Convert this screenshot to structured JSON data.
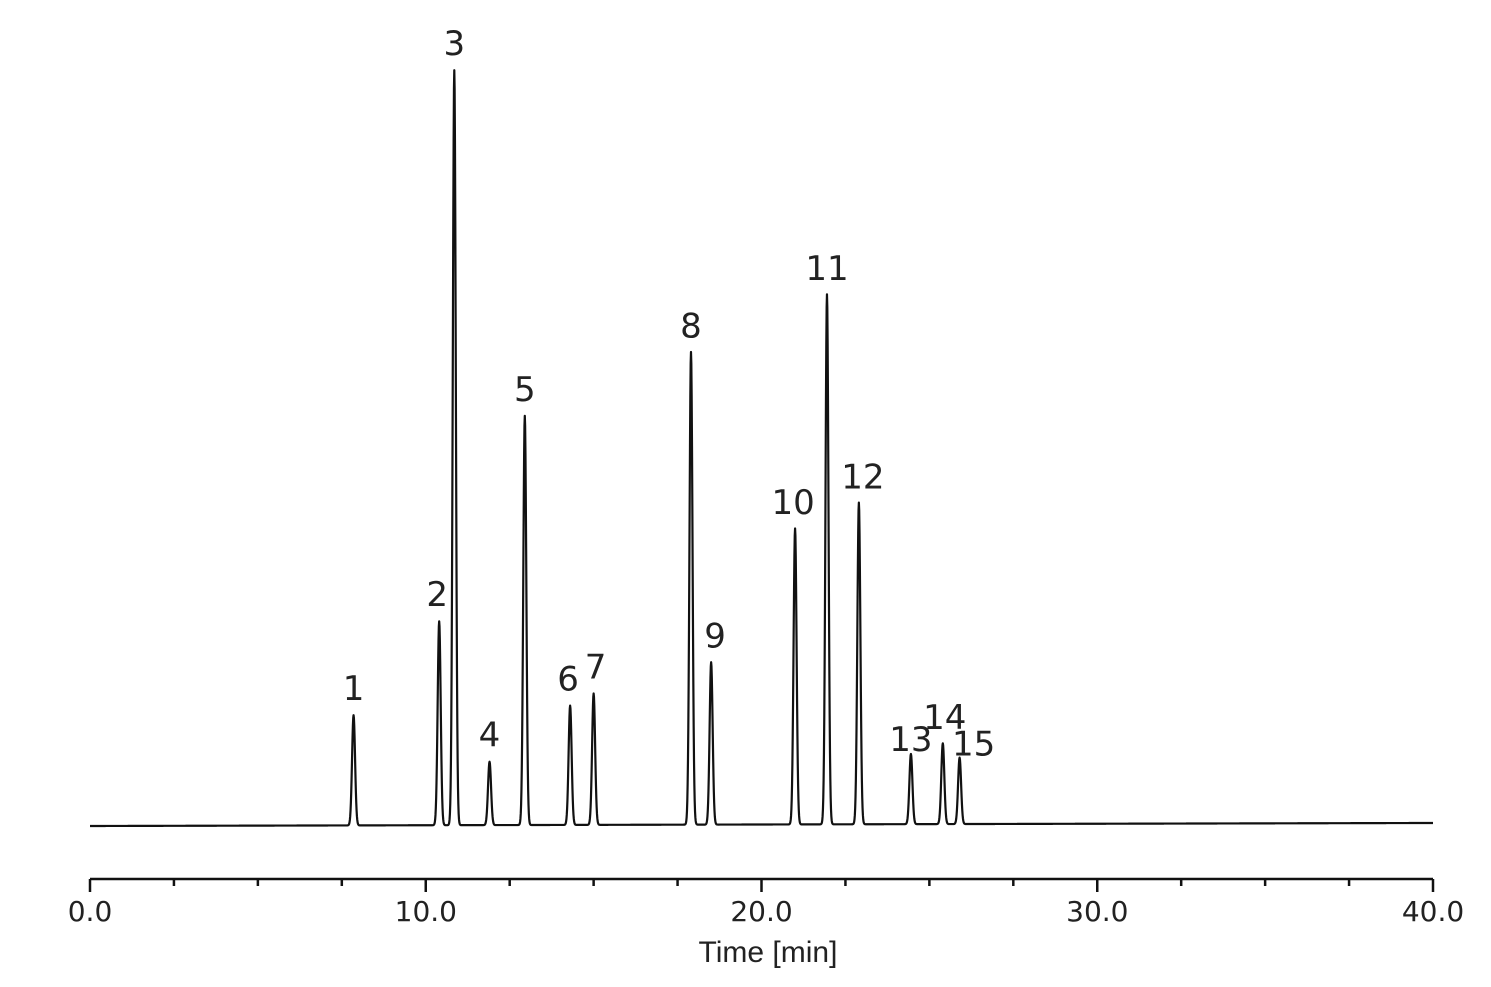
{
  "chart_data": {
    "type": "line",
    "title": "",
    "xlabel": "Time [min]",
    "ylabel": "",
    "xlim": [
      0,
      40
    ],
    "ylim": [
      0,
      100
    ],
    "grid": false,
    "x_ticks": [
      {
        "value": 0,
        "label": "0.0"
      },
      {
        "value": 10,
        "label": "10.0"
      },
      {
        "value": 20,
        "label": "20.0"
      },
      {
        "value": 30,
        "label": "30.0"
      },
      {
        "value": 40,
        "label": "40.0"
      }
    ],
    "baseline": {
      "start": 0.0,
      "end": 0.4
    },
    "peaks": [
      {
        "label": "1",
        "time": 7.85,
        "height": 14.6
      },
      {
        "label": "2",
        "time": 10.4,
        "height": 27.0
      },
      {
        "label": "3",
        "time": 10.85,
        "height": 100.0
      },
      {
        "label": "4",
        "time": 11.9,
        "height": 8.4
      },
      {
        "label": "5",
        "time": 12.95,
        "height": 54.2
      },
      {
        "label": "6",
        "time": 14.3,
        "height": 15.8
      },
      {
        "label": "7",
        "time": 15.0,
        "height": 17.4
      },
      {
        "label": "8",
        "time": 17.9,
        "height": 62.6
      },
      {
        "label": "9",
        "time": 18.5,
        "height": 21.5
      },
      {
        "label": "10",
        "time": 21.0,
        "height": 39.2
      },
      {
        "label": "11",
        "time": 21.95,
        "height": 70.2
      },
      {
        "label": "12",
        "time": 22.9,
        "height": 42.6
      },
      {
        "label": "13",
        "time": 24.45,
        "height": 9.3
      },
      {
        "label": "14",
        "time": 25.4,
        "height": 10.7
      },
      {
        "label": "15",
        "time": 25.9,
        "height": 8.8
      }
    ]
  }
}
